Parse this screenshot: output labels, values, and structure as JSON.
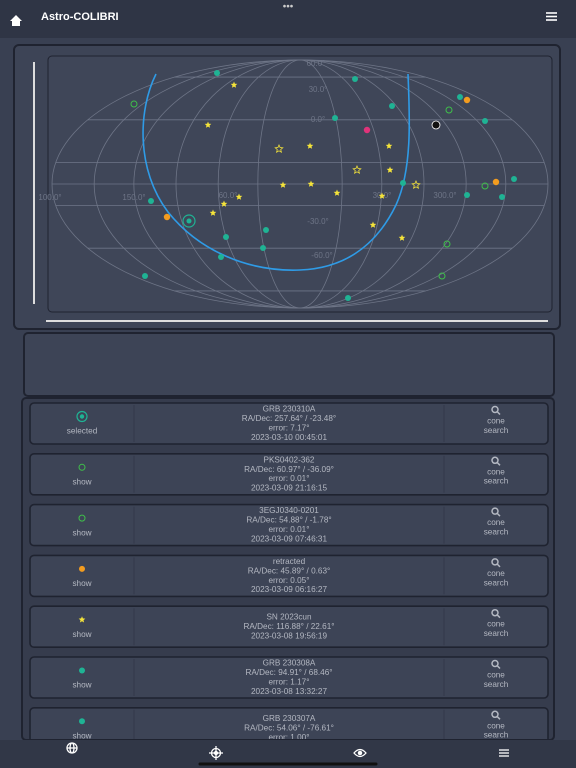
{
  "header": {
    "title": "Astro-COLIBRI"
  },
  "map": {
    "labels": [
      "60.0°",
      "30.0°",
      "0.0°",
      "-30.0°",
      "-60.0°",
      "150.0°",
      "100.0°",
      "60.0°",
      "30.0°",
      "300.0°"
    ]
  },
  "selected": {
    "status": "selected",
    "icon": "target",
    "color": "#1fb394",
    "lines": [
      "GRB 230310A",
      "RA/Dec: 257.64° / -23.48°",
      "error: 7.17°",
      "2023-03-10 00:45:01"
    ],
    "action": "cone search"
  },
  "list": [
    {
      "status": "selected",
      "icon": "target",
      "color": "#1fb394",
      "lines": [
        "GRB 230310A",
        "RA/Dec: 257.64° / -23.48°",
        "error: 7.17°",
        "2023-03-10 00:45:01"
      ],
      "action": "cone search"
    },
    {
      "status": "show",
      "icon": "ring",
      "color": "#3fbf4a",
      "lines": [
        "PKS0402-362",
        "RA/Dec: 60.97° / -36.09°",
        "error: 0.01°",
        "2023-03-09 21:16:15"
      ],
      "action": "cone search"
    },
    {
      "status": "show",
      "icon": "ring",
      "color": "#3fbf4a",
      "lines": [
        "3EGJ0340-0201",
        "RA/Dec: 54.88° / -1.78°",
        "error: 0.01°",
        "2023-03-09 07:46:31"
      ],
      "action": "cone search"
    },
    {
      "status": "show",
      "icon": "dot",
      "color": "#f39c1f",
      "lines": [
        "retracted",
        "RA/Dec: 45.89° / 0.63°",
        "error: 0.05°",
        "2023-03-09 06:16:27"
      ],
      "action": "cone search"
    },
    {
      "status": "show",
      "icon": "star",
      "color": "#f5e43a",
      "lines": [
        "SN 2023cun",
        "RA/Dec: 116.88° / 22.61°",
        "2023-03-08 19:56:19"
      ],
      "action": "cone search"
    },
    {
      "status": "show",
      "icon": "dot",
      "color": "#1fb394",
      "lines": [
        "GRB 230308A",
        "RA/Dec: 94.91° / 68.46°",
        "error: 1.17°",
        "2023-03-08 13:32:27"
      ],
      "action": "cone search"
    },
    {
      "status": "show",
      "icon": "dot",
      "color": "#1fb394",
      "lines": [
        "GRB 230307A",
        "RA/Dec: 54.06° / -76.61°",
        "error: 1.00°"
      ],
      "action": "cone search"
    }
  ]
}
